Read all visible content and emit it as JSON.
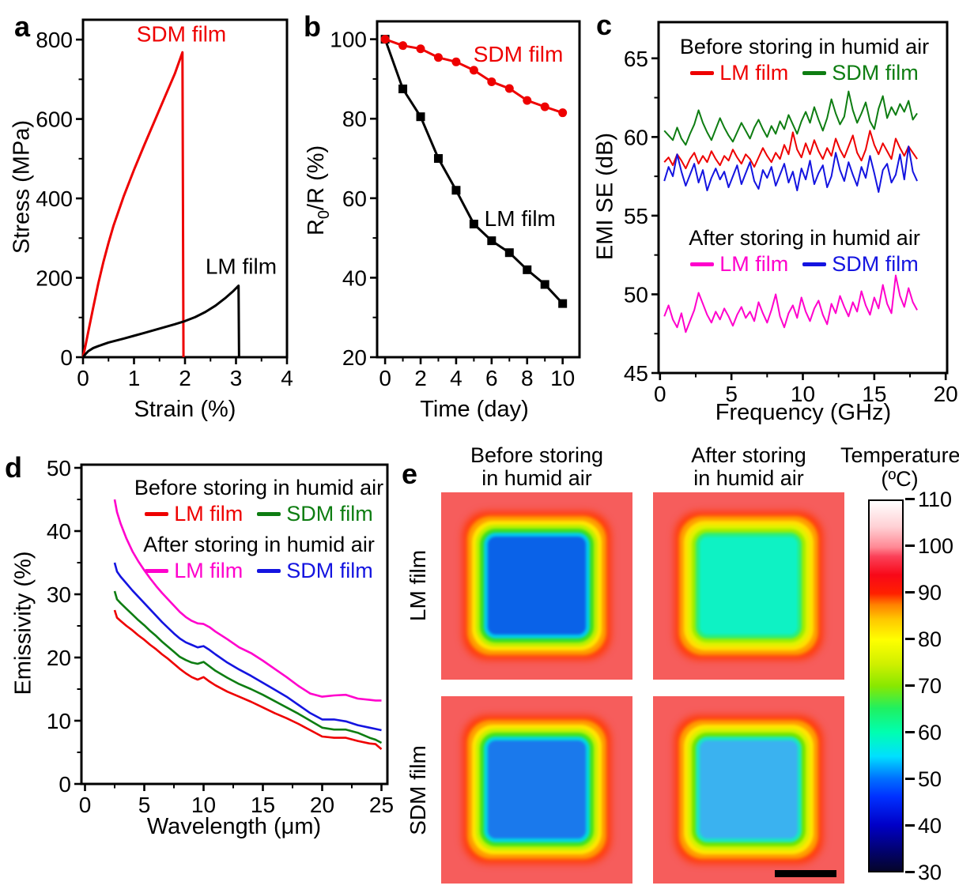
{
  "panel_letters": {
    "a": "a",
    "b": "b",
    "c": "c",
    "d": "d",
    "e": "e"
  },
  "colors": {
    "red": "#ee0000",
    "black": "#000000",
    "green": "#0e7d12",
    "blue": "#1414e0",
    "magenta": "#ff00cc"
  },
  "chart_data": [
    {
      "id": "a",
      "type": "line",
      "xlabel": "Strain (%)",
      "ylabel": "Stress (MPa)",
      "xlim": [
        0,
        4
      ],
      "ylim": [
        0,
        850
      ],
      "xticks": [
        0,
        1,
        2,
        3,
        4
      ],
      "yticks": [
        0,
        200,
        400,
        600,
        800
      ],
      "grid": false,
      "series": [
        {
          "name": "SDM film",
          "color": "#ee0000",
          "lw": 3,
          "x": [
            0,
            0.05,
            0.1,
            0.2,
            0.3,
            0.4,
            0.5,
            0.6,
            0.8,
            1.0,
            1.2,
            1.4,
            1.6,
            1.8,
            1.95,
            1.97
          ],
          "y": [
            0,
            30,
            62,
            125,
            186,
            240,
            288,
            332,
            406,
            472,
            534,
            594,
            654,
            714,
            768,
            0
          ]
        },
        {
          "name": "LM film",
          "color": "#000000",
          "lw": 3,
          "x": [
            0,
            0.05,
            0.1,
            0.2,
            0.3,
            0.5,
            0.8,
            1.0,
            1.2,
            1.5,
            1.8,
            2.0,
            2.2,
            2.4,
            2.6,
            2.8,
            2.95,
            3.05,
            3.06
          ],
          "y": [
            0,
            8,
            15,
            23,
            28,
            37,
            47,
            54,
            61,
            72,
            83,
            91,
            101,
            114,
            130,
            150,
            167,
            180,
            0
          ]
        }
      ],
      "annotations": [
        {
          "text": "SDM film",
          "color": "#ee0000",
          "x": 1.93,
          "y": 795
        },
        {
          "text": "LM film",
          "color": "#000000",
          "x": 3.1,
          "y": 210
        }
      ]
    },
    {
      "id": "b",
      "type": "line",
      "xlabel": "Time (day)",
      "ylabel": "R0/R (%)",
      "ylabel_parts": [
        "R",
        "0",
        "/R (%)"
      ],
      "xlim": [
        -0.45,
        10.95
      ],
      "ylim": [
        20,
        104.5
      ],
      "xticks": [
        0,
        2,
        4,
        6,
        8,
        10
      ],
      "yticks": [
        20,
        40,
        60,
        80,
        100
      ],
      "grid": false,
      "series": [
        {
          "name": "LM film",
          "color": "#000000",
          "lw": 3,
          "marker": "square",
          "x": [
            0,
            1,
            2,
            3,
            4,
            5,
            6,
            7,
            8,
            9,
            10
          ],
          "y": [
            100,
            87.5,
            80.5,
            70.0,
            62.0,
            53.5,
            49.3,
            46.3,
            42.0,
            38.3,
            33.5
          ]
        },
        {
          "name": "SDM film",
          "color": "#ee0000",
          "lw": 3,
          "marker": "circle",
          "x": [
            0,
            1,
            2,
            3,
            4,
            5,
            6,
            7,
            8,
            9,
            10
          ],
          "y": [
            100,
            98.4,
            97.6,
            95.4,
            94.3,
            92.2,
            89.3,
            87.6,
            84.6,
            83.0,
            81.5
          ]
        }
      ],
      "annotations": [
        {
          "text": "SDM film",
          "color": "#ee0000",
          "x": 7.5,
          "y": 94.4
        },
        {
          "text": "LM film",
          "color": "#000000",
          "x": 7.6,
          "y": 53.0
        }
      ]
    },
    {
      "id": "c",
      "type": "line",
      "xlabel": "Frequency (GHz)",
      "ylabel": "EMI SE (dB)",
      "xlim": [
        -0.1,
        20.1
      ],
      "ylim": [
        45,
        67.3
      ],
      "xticks": [
        0,
        5,
        10,
        15,
        20
      ],
      "yticks": [
        45,
        50,
        55,
        60,
        65
      ],
      "grid": false,
      "legends": [
        {
          "title": "Before storing in humid air",
          "entries": [
            {
              "label": "LM film",
              "color": "#ee0000"
            },
            {
              "label": "SDM film",
              "color": "#0e7d12"
            }
          ]
        },
        {
          "title": "After storing in humid air",
          "entries": [
            {
              "label": "LM film",
              "color": "#ff00cc"
            },
            {
              "label": "SDM film",
              "color": "#1414e0"
            }
          ]
        }
      ],
      "series": [
        {
          "name": "SDM film before",
          "color": "#0e7d12",
          "lw": 2,
          "x_start": 0.3,
          "x_step": 0.3,
          "values": [
            60.4,
            60.1,
            59.8,
            60.6,
            59.9,
            59.5,
            60.2,
            60.8,
            61.7,
            60.9,
            60.3,
            59.8,
            60.5,
            61.2,
            60.6,
            60.1,
            59.7,
            60.3,
            60.9,
            60.4,
            59.9,
            60.6,
            61.1,
            60.5,
            60.0,
            60.7,
            60.2,
            61.0,
            60.5,
            61.4,
            60.8,
            60.2,
            61.0,
            61.6,
            60.9,
            61.9,
            61.1,
            60.4,
            61.2,
            62.4,
            61.5,
            60.8,
            61.3,
            62.9,
            61.7,
            60.9,
            61.5,
            62.2,
            61.0,
            60.5,
            61.8,
            62.6,
            61.2,
            61.9,
            61.4,
            62.1,
            61.6,
            62.3,
            61.1,
            61.5
          ]
        },
        {
          "name": "LM film before",
          "color": "#ee0000",
          "lw": 2,
          "x_start": 0.3,
          "x_step": 0.3,
          "values": [
            58.4,
            58.7,
            58.2,
            58.9,
            58.5,
            58.0,
            58.6,
            59.0,
            58.3,
            58.8,
            58.4,
            59.1,
            58.6,
            58.2,
            58.8,
            58.5,
            59.2,
            58.7,
            58.3,
            58.9,
            58.6,
            58.1,
            58.7,
            59.3,
            58.8,
            58.4,
            59.0,
            58.6,
            59.5,
            58.9,
            60.3,
            59.2,
            58.7,
            59.6,
            58.9,
            59.8,
            59.1,
            58.6,
            59.3,
            58.8,
            59.9,
            59.2,
            58.7,
            59.4,
            60.1,
            59.0,
            58.5,
            59.2,
            60.4,
            59.5,
            58.9,
            59.6,
            59.1,
            58.6,
            59.9,
            59.3,
            58.8,
            59.4,
            59.0,
            58.6
          ]
        },
        {
          "name": "SDM film after",
          "color": "#1414e0",
          "lw": 2,
          "x_start": 0.3,
          "x_step": 0.3,
          "values": [
            57.2,
            58.1,
            57.5,
            58.9,
            57.8,
            56.9,
            57.6,
            58.3,
            57.1,
            57.9,
            56.6,
            57.4,
            58.0,
            57.3,
            57.8,
            56.8,
            57.5,
            58.2,
            57.0,
            57.7,
            58.4,
            57.2,
            56.7,
            57.9,
            57.4,
            58.1,
            56.9,
            57.6,
            58.3,
            57.1,
            57.8,
            56.6,
            58.0,
            57.3,
            58.5,
            57.0,
            57.7,
            58.2,
            56.8,
            57.5,
            59.0,
            57.9,
            57.2,
            58.4,
            57.6,
            56.9,
            58.1,
            57.4,
            58.8,
            57.7,
            56.5,
            57.9,
            58.3,
            57.1,
            57.6,
            58.9,
            57.3,
            59.4,
            57.8,
            57.2
          ]
        },
        {
          "name": "LM film after",
          "color": "#ff00cc",
          "lw": 2,
          "x_start": 0.3,
          "x_step": 0.3,
          "values": [
            48.6,
            49.3,
            48.4,
            47.9,
            48.8,
            47.6,
            48.3,
            49.0,
            50.1,
            49.4,
            48.7,
            48.2,
            48.9,
            48.4,
            49.1,
            48.6,
            48.0,
            48.7,
            49.2,
            48.5,
            48.9,
            48.3,
            49.5,
            48.8,
            48.2,
            49.0,
            50.0,
            48.6,
            47.9,
            48.8,
            49.3,
            48.5,
            49.8,
            48.9,
            48.3,
            49.1,
            49.6,
            48.7,
            48.1,
            49.4,
            48.8,
            49.9,
            49.2,
            48.6,
            49.5,
            48.9,
            50.2,
            49.3,
            48.7,
            49.8,
            49.1,
            50.6,
            49.4,
            48.8,
            51.2,
            49.9,
            49.2,
            50.4,
            49.5,
            49.0
          ]
        }
      ]
    },
    {
      "id": "d",
      "type": "line",
      "xlabel": "Wavelength (μm)",
      "ylabel": "Emissivity (%)",
      "xlim": [
        -0.3,
        25.5
      ],
      "ylim": [
        0,
        50.5
      ],
      "xticks": [
        0,
        5,
        10,
        15,
        20,
        25
      ],
      "yticks": [
        0,
        10,
        20,
        30,
        40,
        50
      ],
      "grid": false,
      "legends": [
        {
          "title": "Before storing in humid air",
          "entries": [
            {
              "label": "LM film",
              "color": "#ee0000"
            },
            {
              "label": "SDM film",
              "color": "#0e7d12"
            }
          ]
        },
        {
          "title": "After storing in humid air",
          "entries": [
            {
              "label": "LM film",
              "color": "#ff00cc"
            },
            {
              "label": "SDM film",
              "color": "#1414e0"
            }
          ]
        }
      ],
      "series": [
        {
          "name": "LM film after",
          "color": "#ff00cc",
          "lw": 2.6,
          "x": [
            2.5,
            2.7,
            3,
            3.5,
            4,
            4.5,
            5,
            5.5,
            6,
            6.5,
            7,
            7.5,
            8,
            8.5,
            9,
            9.5,
            10,
            10.5,
            11,
            12,
            13,
            14,
            15,
            16,
            17,
            18,
            19,
            20,
            21,
            22,
            23,
            24,
            24.5,
            25
          ],
          "y": [
            45.0,
            43.0,
            41.2,
            38.8,
            36.8,
            35.2,
            33.8,
            32.5,
            31.3,
            30.2,
            29.2,
            28.2,
            27.2,
            26.4,
            25.8,
            25.4,
            25.3,
            24.8,
            24.1,
            22.9,
            21.6,
            20.7,
            19.5,
            18.2,
            16.9,
            15.5,
            14.3,
            13.8,
            14.0,
            14.1,
            13.5,
            13.3,
            13.2,
            13.2
          ]
        },
        {
          "name": "SDM film after",
          "color": "#1414e0",
          "lw": 2.6,
          "x": [
            2.5,
            2.7,
            3,
            3.5,
            4,
            4.5,
            5,
            5.5,
            6,
            6.5,
            7,
            7.5,
            8,
            8.5,
            9,
            9.5,
            10,
            10.5,
            11,
            12,
            13,
            14,
            15,
            16,
            17,
            18,
            19,
            20,
            21,
            22,
            23,
            24,
            24.5,
            25
          ],
          "y": [
            35.0,
            33.6,
            32.8,
            31.7,
            30.6,
            29.6,
            28.6,
            27.6,
            26.6,
            25.6,
            24.7,
            23.8,
            23.0,
            22.4,
            22.0,
            21.6,
            21.8,
            21.2,
            20.5,
            19.2,
            18.1,
            17.1,
            16.0,
            14.9,
            13.8,
            12.5,
            11.2,
            10.2,
            10.2,
            9.9,
            9.3,
            8.9,
            8.7,
            8.5
          ]
        },
        {
          "name": "SDM film before",
          "color": "#0e7d12",
          "lw": 2.6,
          "x": [
            2.5,
            2.7,
            3,
            3.5,
            4,
            4.5,
            5,
            5.5,
            6,
            6.5,
            7,
            7.5,
            8,
            8.5,
            9,
            9.5,
            10,
            10.5,
            11,
            12,
            13,
            14,
            15,
            16,
            17,
            18,
            19,
            20,
            21,
            22,
            23,
            24,
            24.5,
            25
          ],
          "y": [
            30.5,
            29.2,
            28.6,
            27.7,
            26.8,
            25.9,
            25.1,
            24.2,
            23.4,
            22.5,
            21.7,
            20.9,
            20.1,
            19.6,
            19.2,
            19.0,
            19.3,
            18.6,
            17.9,
            16.8,
            15.8,
            15.0,
            14.1,
            13.1,
            12.1,
            11.1,
            10.0,
            8.9,
            8.6,
            8.6,
            8.1,
            7.3,
            7.0,
            6.5
          ]
        },
        {
          "name": "LM film before",
          "color": "#ee0000",
          "lw": 2.6,
          "x": [
            2.5,
            2.7,
            3,
            3.5,
            4,
            4.5,
            5,
            5.5,
            6,
            6.5,
            7,
            7.5,
            8,
            8.5,
            9,
            9.5,
            10,
            10.5,
            11,
            12,
            13,
            14,
            15,
            16,
            17,
            18,
            19,
            20,
            21,
            22,
            23,
            24,
            24.5,
            25
          ],
          "y": [
            27.5,
            26.3,
            25.8,
            25.0,
            24.3,
            23.5,
            22.8,
            22.0,
            21.3,
            20.5,
            19.8,
            19.0,
            18.2,
            17.5,
            16.9,
            16.5,
            16.9,
            16.2,
            15.6,
            14.6,
            13.8,
            13.0,
            12.1,
            11.2,
            10.4,
            9.5,
            8.5,
            7.5,
            7.3,
            7.3,
            6.8,
            6.4,
            6.3,
            5.5
          ]
        }
      ]
    }
  ],
  "panel_e": {
    "col_headers": [
      [
        "Before storing",
        "in humid air"
      ],
      [
        "After storing",
        "in humid air"
      ]
    ],
    "row_labels": [
      "LM film",
      "SDM film"
    ],
    "background": "#f65d5c",
    "images": [
      {
        "id": "lm-before",
        "fill": "#0a62e8",
        "rings": [
          "#00ccec",
          "#3ce020",
          "#bcf000",
          "#ffe600",
          "#ffa000",
          "#ff3a08"
        ]
      },
      {
        "id": "lm-after",
        "fill": "#0ef2c4",
        "rings": [
          "#2aee7c",
          "#9cee00",
          "#e2f200",
          "#ffe000",
          "#ffa000",
          "#ff3a08"
        ]
      },
      {
        "id": "sdm-before",
        "fill": "#1a79ec",
        "rings": [
          "#00d8e0",
          "#44e41c",
          "#c4f200",
          "#ffe600",
          "#ffa000",
          "#ff3a08"
        ]
      },
      {
        "id": "sdm-after",
        "fill": "#3ab2f0",
        "rings": [
          "#18e8c0",
          "#70e600",
          "#d4f200",
          "#ffe600",
          "#ffa000",
          "#ff3a08"
        ]
      }
    ],
    "colorbar": {
      "title": "Temperature",
      "unit": "(ºC)",
      "ticks": [
        110,
        100,
        90,
        80,
        70,
        60,
        50,
        40,
        30
      ],
      "gradient": [
        [
          "#04042a",
          0
        ],
        [
          "#0000c8",
          12.5
        ],
        [
          "#0030ff",
          20
        ],
        [
          "#0070ff",
          25
        ],
        [
          "#00e0ff",
          31
        ],
        [
          "#00ffb0",
          37.5
        ],
        [
          "#20f060",
          44
        ],
        [
          "#88e800",
          50
        ],
        [
          "#d0f000",
          56
        ],
        [
          "#ffff00",
          62.5
        ],
        [
          "#ffc800",
          68
        ],
        [
          "#ff8000",
          72
        ],
        [
          "#ff2000",
          75
        ],
        [
          "#f80818",
          80
        ],
        [
          "#fb4058",
          85
        ],
        [
          "#ff8894",
          87.5
        ],
        [
          "#ffd0d4",
          93
        ],
        [
          "#ffffff",
          100
        ]
      ]
    }
  }
}
